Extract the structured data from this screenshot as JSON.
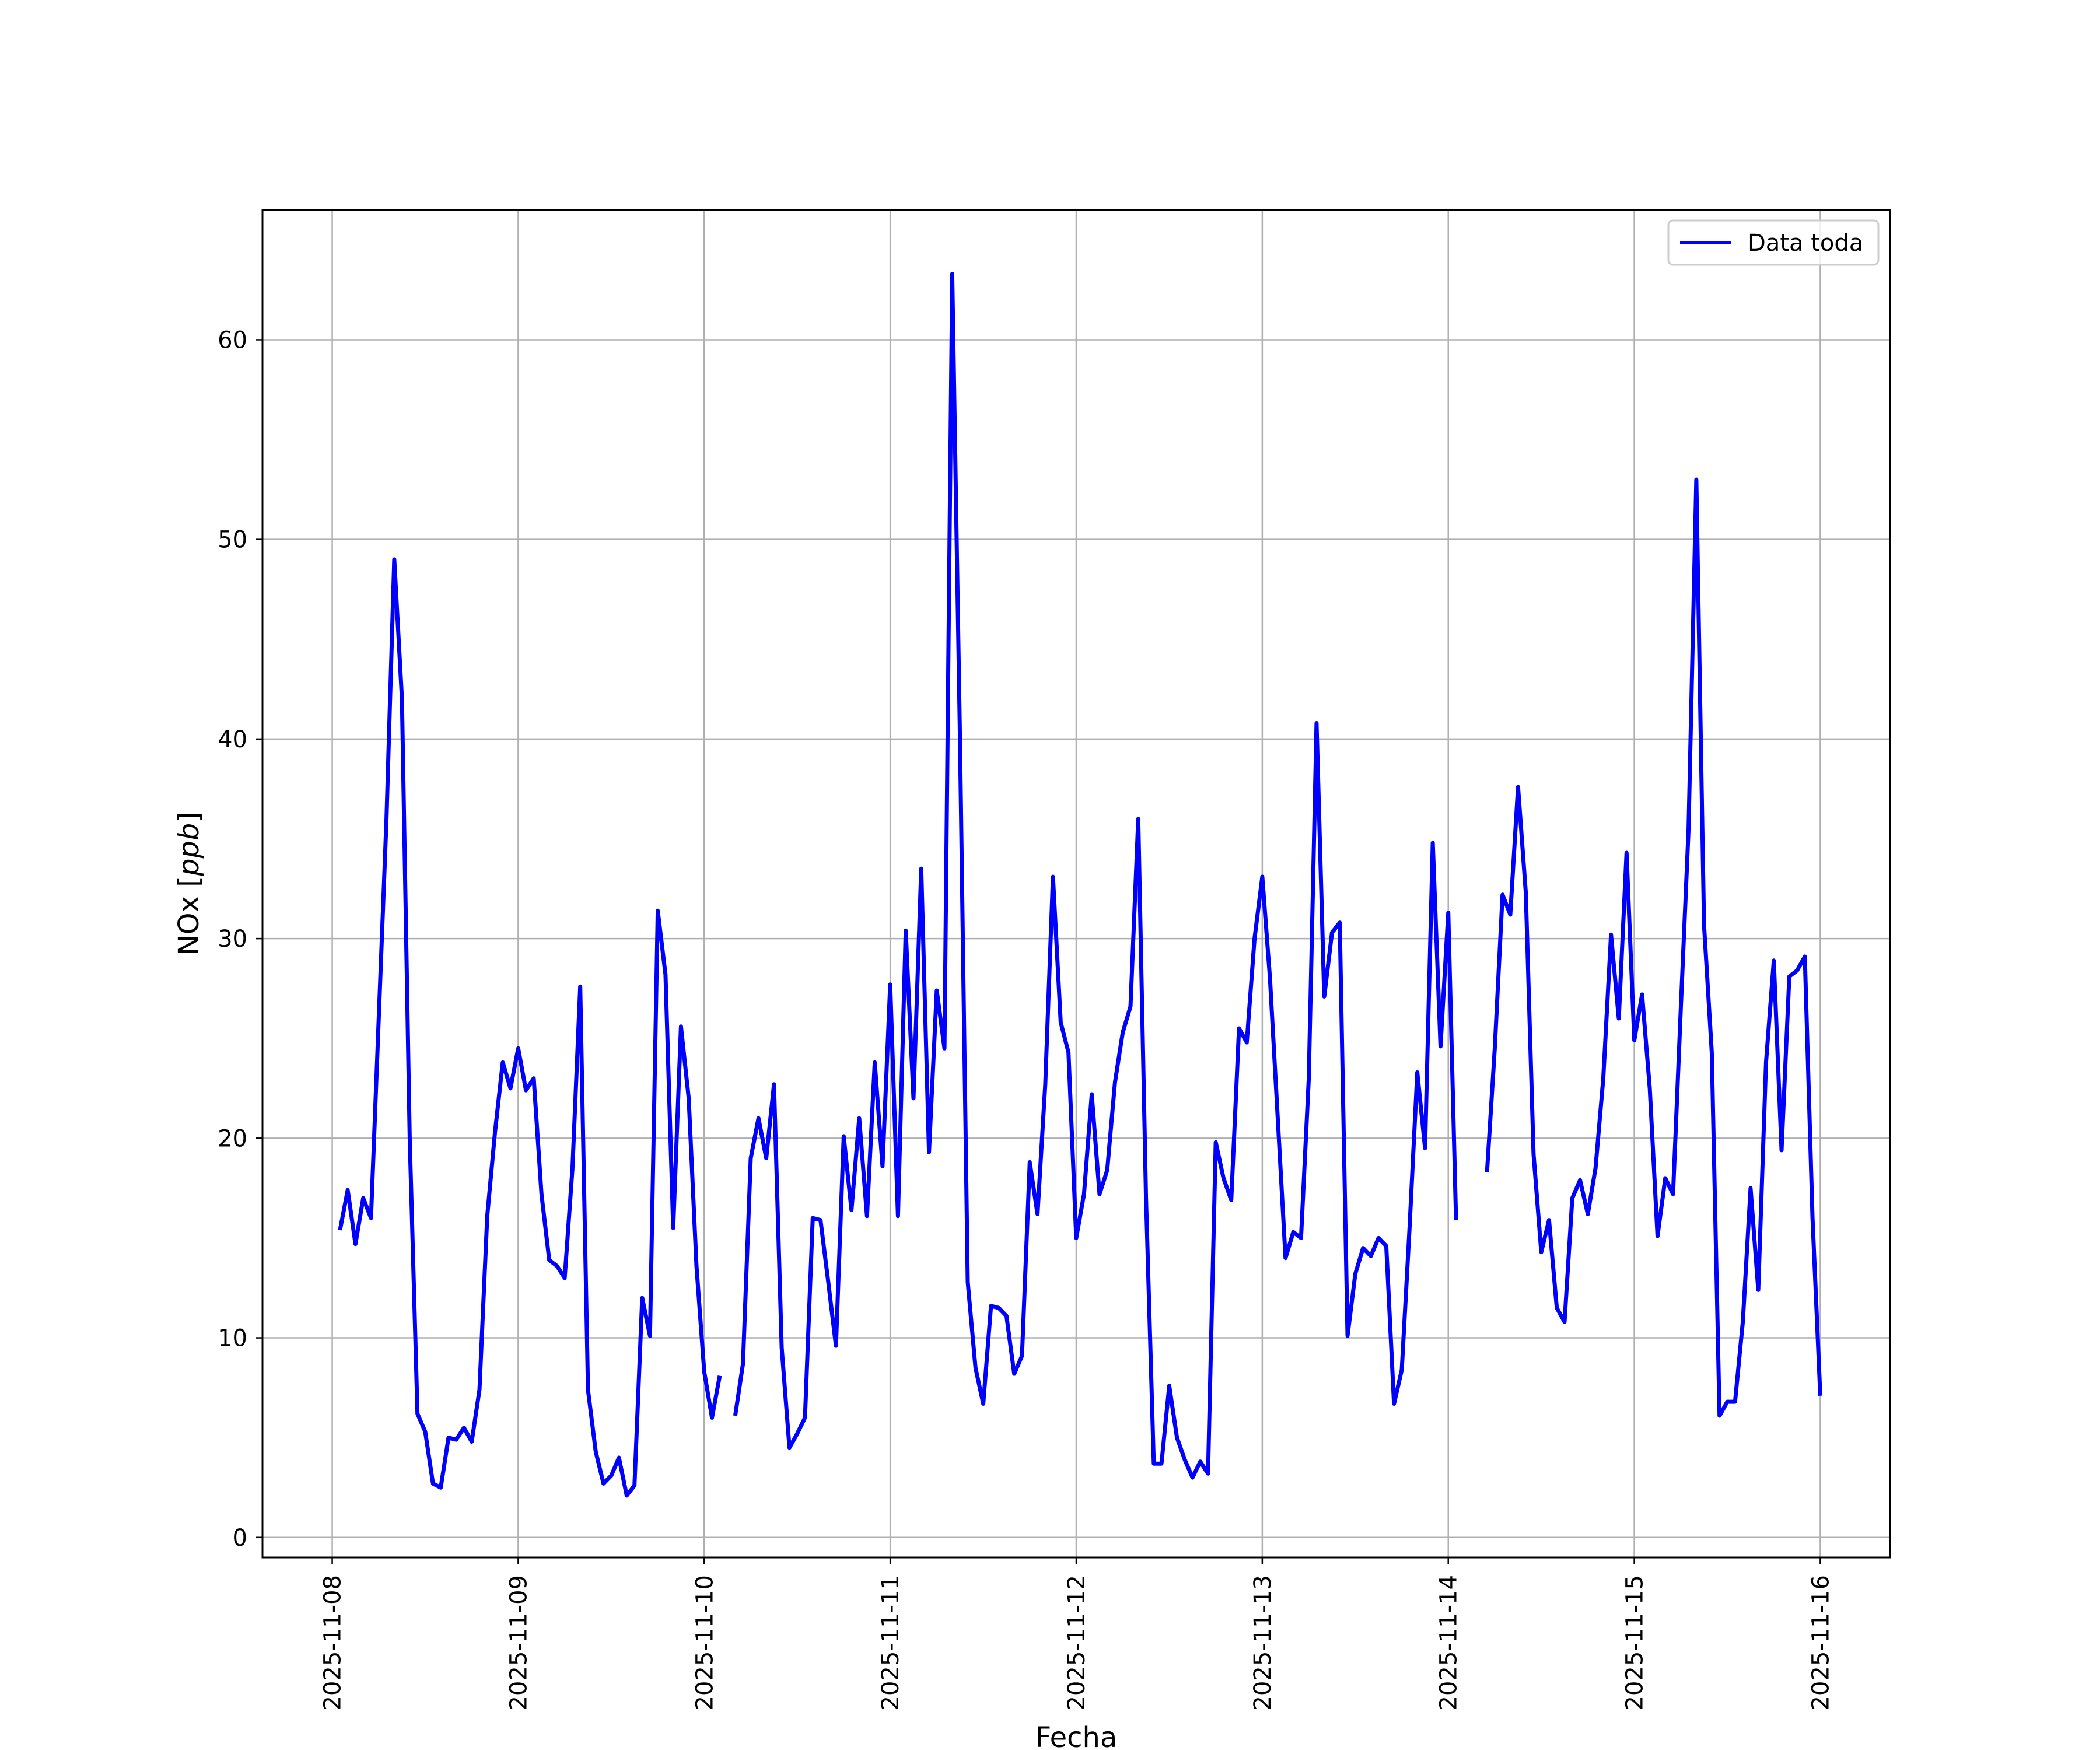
{
  "chart_data": {
    "type": "line",
    "xlabel": "Fecha",
    "ylabel_main": "NOx ",
    "ylabel_unit": "ppb",
    "x_ticks": [
      "2025-11-08",
      "2025-11-09",
      "2025-11-10",
      "2025-11-11",
      "2025-11-12",
      "2025-11-13",
      "2025-11-14",
      "2025-11-15",
      "2025-11-16"
    ],
    "y_ticks": [
      0,
      10,
      20,
      30,
      40,
      50,
      60
    ],
    "xlim": [
      "2025-11-07T15:00",
      "2025-11-16T09:00"
    ],
    "ylim": [
      -1.0,
      66.5
    ],
    "grid": true,
    "legend_position": "top-right",
    "series": [
      {
        "name": "Data toda",
        "color": "#0000ff",
        "points": [
          [
            "2025-11-08T01:00",
            15.4
          ],
          [
            "2025-11-08T02:00",
            17.4
          ],
          [
            "2025-11-08T03:00",
            14.7
          ],
          [
            "2025-11-08T04:00",
            17.0
          ],
          [
            "2025-11-08T05:00",
            16.0
          ],
          [
            "2025-11-08T06:00",
            26.0
          ],
          [
            "2025-11-08T07:00",
            36.0
          ],
          [
            "2025-11-08T08:00",
            49.0
          ],
          [
            "2025-11-08T09:00",
            42.0
          ],
          [
            "2025-11-08T10:00",
            20.0
          ],
          [
            "2025-11-08T11:00",
            6.2
          ],
          [
            "2025-11-08T12:00",
            5.3
          ],
          [
            "2025-11-08T13:00",
            2.7
          ],
          [
            "2025-11-08T14:00",
            2.5
          ],
          [
            "2025-11-08T15:00",
            5.0
          ],
          [
            "2025-11-08T16:00",
            4.9
          ],
          [
            "2025-11-08T17:00",
            5.5
          ],
          [
            "2025-11-08T18:00",
            4.8
          ],
          [
            "2025-11-08T19:00",
            7.4
          ],
          [
            "2025-11-08T20:00",
            16.1
          ],
          [
            "2025-11-08T21:00",
            20.3
          ],
          [
            "2025-11-08T22:00",
            23.8
          ],
          [
            "2025-11-08T23:00",
            22.5
          ],
          [
            "2025-11-09T00:00",
            24.5
          ],
          [
            "2025-11-09T01:00",
            22.4
          ],
          [
            "2025-11-09T02:00",
            23.0
          ],
          [
            "2025-11-09T03:00",
            17.2
          ],
          [
            "2025-11-09T04:00",
            13.9
          ],
          [
            "2025-11-09T05:00",
            13.6
          ],
          [
            "2025-11-09T06:00",
            13.0
          ],
          [
            "2025-11-09T07:00",
            18.5
          ],
          [
            "2025-11-09T08:00",
            27.6
          ],
          [
            "2025-11-09T09:00",
            7.4
          ],
          [
            "2025-11-09T10:00",
            4.3
          ],
          [
            "2025-11-09T11:00",
            2.7
          ],
          [
            "2025-11-09T12:00",
            3.1
          ],
          [
            "2025-11-09T13:00",
            4.0
          ],
          [
            "2025-11-09T14:00",
            2.1
          ],
          [
            "2025-11-09T15:00",
            2.6
          ],
          [
            "2025-11-09T16:00",
            12.0
          ],
          [
            "2025-11-09T17:00",
            10.1
          ],
          [
            "2025-11-09T18:00",
            31.4
          ],
          [
            "2025-11-09T19:00",
            28.2
          ],
          [
            "2025-11-09T20:00",
            15.5
          ],
          [
            "2025-11-09T21:00",
            25.6
          ],
          [
            "2025-11-09T22:00",
            22.0
          ],
          [
            "2025-11-09T23:00",
            13.6
          ],
          [
            "2025-11-10T00:00",
            8.3
          ],
          [
            "2025-11-10T01:00",
            6.0
          ],
          [
            "2025-11-10T02:00",
            8.1
          ],
          null,
          [
            "2025-11-10T04:00",
            6.1
          ],
          [
            "2025-11-10T05:00",
            8.7
          ],
          [
            "2025-11-10T06:00",
            19.0
          ],
          [
            "2025-11-10T07:00",
            21.0
          ],
          [
            "2025-11-10T08:00",
            19.0
          ],
          [
            "2025-11-10T09:00",
            22.7
          ],
          [
            "2025-11-10T10:00",
            9.5
          ],
          [
            "2025-11-10T11:00",
            4.5
          ],
          [
            "2025-11-10T12:00",
            5.2
          ],
          [
            "2025-11-10T13:00",
            6.0
          ],
          [
            "2025-11-10T14:00",
            16.0
          ],
          [
            "2025-11-10T15:00",
            15.9
          ],
          [
            "2025-11-10T16:00",
            12.8
          ],
          [
            "2025-11-10T17:00",
            9.6
          ],
          [
            "2025-11-10T18:00",
            20.1
          ],
          [
            "2025-11-10T19:00",
            16.4
          ],
          [
            "2025-11-10T20:00",
            21.0
          ],
          [
            "2025-11-10T21:00",
            16.1
          ],
          [
            "2025-11-10T22:00",
            23.8
          ],
          [
            "2025-11-10T23:00",
            18.6
          ],
          [
            "2025-11-11T00:00",
            27.7
          ],
          [
            "2025-11-11T01:00",
            16.1
          ],
          [
            "2025-11-11T02:00",
            30.4
          ],
          [
            "2025-11-11T03:00",
            22.0
          ],
          [
            "2025-11-11T04:00",
            33.5
          ],
          [
            "2025-11-11T05:00",
            19.3
          ],
          [
            "2025-11-11T06:00",
            27.4
          ],
          [
            "2025-11-11T07:00",
            24.5
          ],
          [
            "2025-11-11T08:00",
            63.3
          ],
          [
            "2025-11-11T09:00",
            40.0
          ],
          [
            "2025-11-11T10:00",
            12.8
          ],
          [
            "2025-11-11T11:00",
            8.5
          ],
          [
            "2025-11-11T12:00",
            6.7
          ],
          [
            "2025-11-11T13:00",
            11.6
          ],
          [
            "2025-11-11T14:00",
            11.5
          ],
          [
            "2025-11-11T15:00",
            11.1
          ],
          [
            "2025-11-11T16:00",
            8.2
          ],
          [
            "2025-11-11T17:00",
            9.1
          ],
          [
            "2025-11-11T18:00",
            18.8
          ],
          [
            "2025-11-11T19:00",
            16.2
          ],
          [
            "2025-11-11T20:00",
            22.7
          ],
          [
            "2025-11-11T21:00",
            33.1
          ],
          [
            "2025-11-11T22:00",
            25.8
          ],
          [
            "2025-11-11T23:00",
            24.3
          ],
          [
            "2025-11-12T00:00",
            15.0
          ],
          [
            "2025-11-12T01:00",
            17.2
          ],
          [
            "2025-11-12T02:00",
            22.2
          ],
          [
            "2025-11-12T03:00",
            17.2
          ],
          [
            "2025-11-12T04:00",
            18.4
          ],
          [
            "2025-11-12T05:00",
            22.8
          ],
          [
            "2025-11-12T06:00",
            25.3
          ],
          [
            "2025-11-12T07:00",
            26.6
          ],
          [
            "2025-11-12T08:00",
            36.0
          ],
          [
            "2025-11-12T09:00",
            17.0
          ],
          [
            "2025-11-12T10:00",
            3.7
          ],
          [
            "2025-11-12T11:00",
            3.7
          ],
          [
            "2025-11-12T12:00",
            7.6
          ],
          [
            "2025-11-12T13:00",
            5.0
          ],
          [
            "2025-11-12T14:00",
            3.9
          ],
          [
            "2025-11-12T15:00",
            3.0
          ],
          [
            "2025-11-12T16:00",
            3.8
          ],
          [
            "2025-11-12T17:00",
            3.2
          ],
          [
            "2025-11-12T18:00",
            19.8
          ],
          [
            "2025-11-12T19:00",
            18.0
          ],
          [
            "2025-11-12T20:00",
            16.9
          ],
          [
            "2025-11-12T21:00",
            25.5
          ],
          [
            "2025-11-12T22:00",
            24.8
          ],
          [
            "2025-11-12T23:00",
            30.0
          ],
          [
            "2025-11-13T00:00",
            33.1
          ],
          [
            "2025-11-13T01:00",
            28.0
          ],
          [
            "2025-11-13T02:00",
            21.0
          ],
          [
            "2025-11-13T03:00",
            14.0
          ],
          [
            "2025-11-13T04:00",
            15.3
          ],
          [
            "2025-11-13T05:00",
            15.0
          ],
          [
            "2025-11-13T06:00",
            23.0
          ],
          [
            "2025-11-13T07:00",
            40.8
          ],
          [
            "2025-11-13T08:00",
            27.1
          ],
          [
            "2025-11-13T09:00",
            30.3
          ],
          [
            "2025-11-13T10:00",
            30.8
          ],
          [
            "2025-11-13T11:00",
            10.1
          ],
          [
            "2025-11-13T12:00",
            13.2
          ],
          [
            "2025-11-13T13:00",
            14.5
          ],
          [
            "2025-11-13T14:00",
            14.1
          ],
          [
            "2025-11-13T15:00",
            15.0
          ],
          [
            "2025-11-13T16:00",
            14.6
          ],
          [
            "2025-11-13T17:00",
            6.7
          ],
          [
            "2025-11-13T18:00",
            8.4
          ],
          [
            "2025-11-13T19:00",
            15.5
          ],
          [
            "2025-11-13T20:00",
            23.3
          ],
          [
            "2025-11-13T21:00",
            19.5
          ],
          [
            "2025-11-13T22:00",
            34.8
          ],
          [
            "2025-11-13T23:00",
            24.6
          ],
          [
            "2025-11-14T00:00",
            31.3
          ],
          [
            "2025-11-14T01:00",
            15.9
          ],
          null,
          [
            "2025-11-14T05:00",
            18.3
          ],
          [
            "2025-11-14T06:00",
            24.5
          ],
          [
            "2025-11-14T07:00",
            32.2
          ],
          [
            "2025-11-14T08:00",
            31.2
          ],
          [
            "2025-11-14T09:00",
            37.6
          ],
          [
            "2025-11-14T10:00",
            32.3
          ],
          [
            "2025-11-14T11:00",
            19.2
          ],
          [
            "2025-11-14T12:00",
            14.3
          ],
          [
            "2025-11-14T13:00",
            15.9
          ],
          [
            "2025-11-14T14:00",
            11.5
          ],
          [
            "2025-11-14T15:00",
            10.8
          ],
          [
            "2025-11-14T16:00",
            17.0
          ],
          [
            "2025-11-14T17:00",
            17.9
          ],
          [
            "2025-11-14T18:00",
            16.2
          ],
          [
            "2025-11-14T19:00",
            18.5
          ],
          [
            "2025-11-14T20:00",
            23.0
          ],
          [
            "2025-11-14T21:00",
            30.2
          ],
          [
            "2025-11-14T22:00",
            26.0
          ],
          [
            "2025-11-14T23:00",
            34.3
          ],
          [
            "2025-11-15T00:00",
            24.9
          ],
          [
            "2025-11-15T01:00",
            27.2
          ],
          [
            "2025-11-15T02:00",
            22.5
          ],
          [
            "2025-11-15T03:00",
            15.1
          ],
          [
            "2025-11-15T04:00",
            18.0
          ],
          [
            "2025-11-15T05:00",
            17.2
          ],
          [
            "2025-11-15T06:00",
            26.5
          ],
          [
            "2025-11-15T07:00",
            35.5
          ],
          [
            "2025-11-15T08:00",
            53.0
          ],
          [
            "2025-11-15T09:00",
            30.7
          ],
          [
            "2025-11-15T10:00",
            24.3
          ],
          [
            "2025-11-15T11:00",
            6.1
          ],
          [
            "2025-11-15T12:00",
            6.8
          ],
          [
            "2025-11-15T13:00",
            6.8
          ],
          [
            "2025-11-15T14:00",
            10.8
          ],
          [
            "2025-11-15T15:00",
            17.5
          ],
          [
            "2025-11-15T16:00",
            12.4
          ],
          [
            "2025-11-15T17:00",
            23.8
          ],
          [
            "2025-11-15T18:00",
            28.9
          ],
          [
            "2025-11-15T19:00",
            19.4
          ],
          [
            "2025-11-15T20:00",
            28.1
          ],
          [
            "2025-11-15T21:00",
            28.4
          ],
          [
            "2025-11-15T22:00",
            29.1
          ],
          [
            "2025-11-15T23:00",
            16.0
          ],
          [
            "2025-11-16T00:00",
            7.1
          ]
        ]
      }
    ]
  }
}
